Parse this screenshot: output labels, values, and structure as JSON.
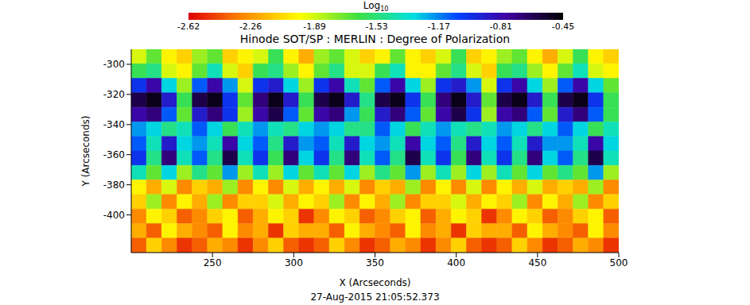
{
  "chart_data": {
    "type": "heatmap",
    "title": "Hinode SOT/SP : MERLIN : Degree of Polarization",
    "subtitle": "27-Aug-2015 21:05:52.373",
    "x_label": "X (Arcseconds)",
    "y_label": "Y (Arcseconds)",
    "xlim": [
      200,
      500
    ],
    "xticks": [
      250,
      300,
      350,
      400,
      450,
      500
    ],
    "ylim": [
      -425,
      -290
    ],
    "yticks": [
      -400,
      -380,
      -360,
      -340,
      -320,
      -300
    ],
    "grid": false,
    "colorbar_label": "Log10",
    "colorbar_range": [
      -2.62,
      -0.45
    ],
    "colorbar_ticks": [
      -2.62,
      -2.26,
      -1.89,
      -1.53,
      -1.17,
      -0.81,
      -0.45
    ],
    "cells": [
      [
        -1.9,
        -1.7,
        -2.0,
        -2.1,
        -1.8,
        -1.7,
        -2.1,
        -2.0,
        -1.9,
        -1.6,
        -2.0,
        -2.2,
        -1.8,
        -1.7,
        -1.9,
        -2.1,
        -2.0,
        -1.7,
        -2.0,
        -2.1,
        -1.9,
        -1.6,
        -2.1,
        -2.0,
        -1.8,
        -1.7,
        -2.0,
        -2.2,
        -1.9,
        -1.6,
        -2.0,
        -2.1
      ],
      [
        -1.6,
        -1.5,
        -1.9,
        -2.0,
        -1.7,
        -1.4,
        -1.9,
        -2.1,
        -1.6,
        -1.5,
        -1.8,
        -2.0,
        -1.7,
        -1.5,
        -1.9,
        -1.9,
        -1.6,
        -1.4,
        -2.0,
        -2.0,
        -1.7,
        -1.5,
        -1.9,
        -2.1,
        -1.6,
        -1.5,
        -1.8,
        -2.0,
        -1.7,
        -1.4,
        -1.9,
        -2.0
      ],
      [
        -1.0,
        -0.8,
        -1.3,
        -1.8,
        -1.1,
        -0.8,
        -1.2,
        -1.9,
        -1.0,
        -0.9,
        -1.3,
        -1.8,
        -1.0,
        -0.8,
        -1.4,
        -1.7,
        -1.1,
        -0.8,
        -1.3,
        -1.8,
        -1.0,
        -0.9,
        -1.2,
        -1.9,
        -1.0,
        -0.8,
        -1.3,
        -1.8,
        -1.1,
        -0.8,
        -1.3,
        -1.7
      ],
      [
        -0.6,
        -0.5,
        -0.9,
        -1.6,
        -0.6,
        -0.5,
        -1.0,
        -1.7,
        -0.7,
        -0.5,
        -0.9,
        -1.6,
        -0.6,
        -0.5,
        -0.9,
        -1.5,
        -0.6,
        -0.5,
        -1.0,
        -1.6,
        -0.7,
        -0.5,
        -0.9,
        -1.7,
        -0.6,
        -0.5,
        -0.9,
        -1.6,
        -0.6,
        -0.5,
        -1.0,
        -1.6
      ],
      [
        -0.8,
        -0.7,
        -1.1,
        -1.7,
        -0.9,
        -0.7,
        -1.0,
        -1.8,
        -0.8,
        -0.6,
        -1.1,
        -1.7,
        -0.8,
        -0.7,
        -1.2,
        -1.6,
        -0.9,
        -0.7,
        -1.1,
        -1.7,
        -0.8,
        -0.6,
        -1.0,
        -1.8,
        -0.8,
        -0.7,
        -1.1,
        -1.7,
        -0.9,
        -0.7,
        -1.1,
        -1.6
      ],
      [
        -1.2,
        -1.3,
        -1.5,
        -1.4,
        -1.1,
        -1.3,
        -1.6,
        -1.4,
        -1.2,
        -1.4,
        -1.5,
        -1.3,
        -1.2,
        -1.3,
        -1.5,
        -1.5,
        -1.1,
        -1.3,
        -1.6,
        -1.4,
        -1.2,
        -1.4,
        -1.5,
        -1.4,
        -1.2,
        -1.3,
        -1.5,
        -1.3,
        -1.1,
        -1.3,
        -1.6,
        -1.4
      ],
      [
        -1.1,
        -1.4,
        -0.9,
        -1.3,
        -1.2,
        -1.4,
        -0.8,
        -1.3,
        -1.1,
        -1.5,
        -0.9,
        -1.2,
        -1.1,
        -1.4,
        -0.9,
        -1.3,
        -1.2,
        -1.4,
        -0.8,
        -1.3,
        -1.1,
        -1.5,
        -0.9,
        -1.3,
        -1.1,
        -1.4,
        -0.9,
        -1.2,
        -1.2,
        -1.4,
        -0.8,
        -1.3
      ],
      [
        -1.0,
        -1.5,
        -0.7,
        -1.4,
        -1.1,
        -1.5,
        -0.6,
        -1.4,
        -1.0,
        -1.6,
        -0.7,
        -1.3,
        -1.0,
        -1.5,
        -0.7,
        -1.4,
        -1.1,
        -1.5,
        -0.6,
        -1.4,
        -1.0,
        -1.6,
        -0.7,
        -1.4,
        -1.0,
        -1.5,
        -0.7,
        -1.3,
        -1.1,
        -1.5,
        -0.6,
        -1.4
      ],
      [
        -1.4,
        -1.7,
        -1.3,
        -1.8,
        -1.5,
        -1.7,
        -1.2,
        -1.8,
        -1.4,
        -1.8,
        -1.3,
        -1.7,
        -1.4,
        -1.7,
        -1.3,
        -1.8,
        -1.5,
        -1.7,
        -1.2,
        -1.8,
        -1.4,
        -1.8,
        -1.3,
        -1.8,
        -1.4,
        -1.7,
        -1.3,
        -1.7,
        -1.5,
        -1.7,
        -1.2,
        -1.8
      ],
      [
        -2.0,
        -2.2,
        -1.9,
        -2.3,
        -2.1,
        -2.2,
        -1.8,
        -2.3,
        -2.0,
        -2.3,
        -1.9,
        -2.2,
        -2.0,
        -2.2,
        -1.9,
        -2.3,
        -2.1,
        -2.2,
        -1.8,
        -2.3,
        -2.0,
        -2.3,
        -1.9,
        -2.3,
        -2.0,
        -2.2,
        -1.9,
        -2.2,
        -2.1,
        -2.2,
        -1.8,
        -2.3
      ],
      [
        -2.1,
        -1.8,
        -2.3,
        -2.0,
        -2.2,
        -1.8,
        -2.3,
        -2.1,
        -2.1,
        -1.9,
        -2.2,
        -2.0,
        -2.1,
        -1.8,
        -2.3,
        -2.0,
        -2.2,
        -1.8,
        -2.3,
        -2.1,
        -2.1,
        -1.9,
        -2.2,
        -2.0,
        -2.1,
        -1.8,
        -2.3,
        -2.0,
        -2.2,
        -1.8,
        -2.3,
        -2.1
      ],
      [
        -2.3,
        -2.0,
        -2.1,
        -2.4,
        -2.3,
        -2.1,
        -2.0,
        -2.4,
        -2.2,
        -2.0,
        -2.1,
        -2.5,
        -2.3,
        -2.0,
        -2.1,
        -2.4,
        -2.3,
        -2.1,
        -2.0,
        -2.4,
        -2.2,
        -2.0,
        -2.1,
        -2.5,
        -2.3,
        -2.0,
        -2.1,
        -2.4,
        -2.3,
        -2.1,
        -2.0,
        -2.4
      ],
      [
        -2.2,
        -2.4,
        -2.0,
        -2.2,
        -2.3,
        -2.4,
        -2.0,
        -2.3,
        -2.2,
        -2.5,
        -2.1,
        -2.2,
        -2.2,
        -2.4,
        -2.0,
        -2.2,
        -2.3,
        -2.4,
        -2.0,
        -2.3,
        -2.2,
        -2.5,
        -2.1,
        -2.2,
        -2.2,
        -2.4,
        -2.0,
        -2.2,
        -2.3,
        -2.4,
        -2.0,
        -2.3
      ],
      [
        -2.4,
        -2.1,
        -2.3,
        -2.5,
        -2.4,
        -2.2,
        -2.3,
        -2.5,
        -2.3,
        -2.1,
        -2.4,
        -2.5,
        -2.4,
        -2.1,
        -2.3,
        -2.5,
        -2.4,
        -2.2,
        -2.3,
        -2.5,
        -2.3,
        -2.1,
        -2.4,
        -2.5,
        -2.4,
        -2.1,
        -2.3,
        -2.5,
        -2.4,
        -2.2,
        -2.3,
        -2.5
      ]
    ]
  }
}
